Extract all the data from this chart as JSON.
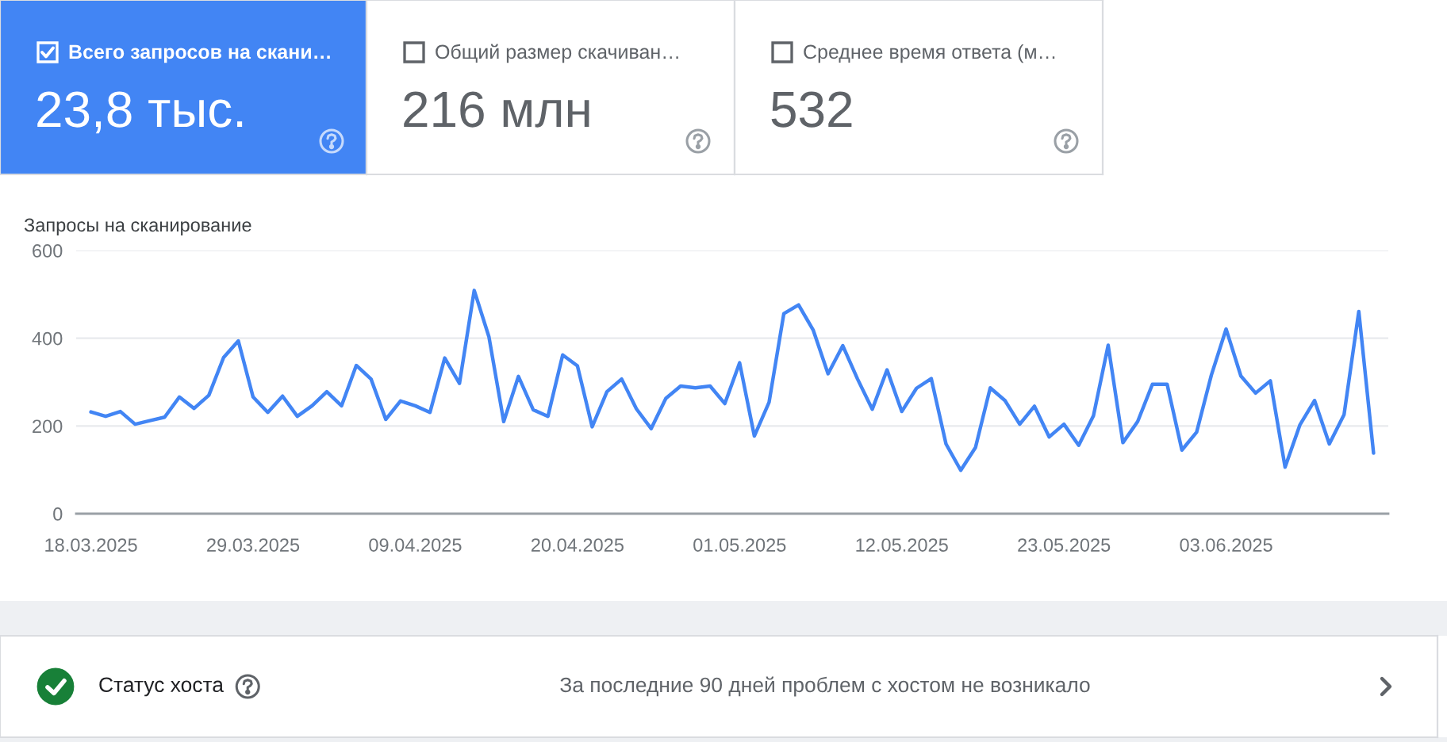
{
  "chart_data": [
    {
      "type": "other",
      "title": "Всего запросов на скани…",
      "annotations": [
        "23,8 тыс."
      ],
      "color": "#4285f4"
    },
    {
      "type": "other",
      "title": "Общий размер скачиван…",
      "annotations": [
        "216 млн"
      ],
      "color": "#ffffff"
    },
    {
      "type": "other",
      "title": "Среднее время ответа (м…",
      "annotations": [
        "532"
      ],
      "color": "#ffffff"
    },
    {
      "type": "line",
      "ylabel": "Запросы на сканирование",
      "color": "#4285f4",
      "x": [
        "2025-03-18",
        "2025-03-19",
        "2025-03-20",
        "2025-03-21",
        "2025-03-22",
        "2025-03-23",
        "2025-03-24",
        "2025-03-25",
        "2025-03-26",
        "2025-03-27",
        "2025-03-28",
        "2025-03-29",
        "2025-03-30",
        "2025-03-31",
        "2025-04-01",
        "2025-04-02",
        "2025-04-03",
        "2025-04-04",
        "2025-04-05",
        "2025-04-06",
        "2025-04-07",
        "2025-04-08",
        "2025-04-09",
        "2025-04-10",
        "2025-04-11",
        "2025-04-12",
        "2025-04-13",
        "2025-04-14",
        "2025-04-15",
        "2025-04-16",
        "2025-04-17",
        "2025-04-18",
        "2025-04-19",
        "2025-04-20",
        "2025-04-21",
        "2025-04-22",
        "2025-04-23",
        "2025-04-24",
        "2025-04-25",
        "2025-04-26",
        "2025-04-27",
        "2025-04-28",
        "2025-04-29",
        "2025-04-30",
        "2025-05-01",
        "2025-05-02",
        "2025-05-03",
        "2025-05-04",
        "2025-05-05",
        "2025-05-06",
        "2025-05-07",
        "2025-05-08",
        "2025-05-09",
        "2025-05-10",
        "2025-05-11",
        "2025-05-12",
        "2025-05-13",
        "2025-05-14",
        "2025-05-15",
        "2025-05-16",
        "2025-05-17",
        "2025-05-18",
        "2025-05-19",
        "2025-05-20",
        "2025-05-21",
        "2025-05-22",
        "2025-05-23",
        "2025-05-24",
        "2025-05-25",
        "2025-05-26",
        "2025-05-27",
        "2025-05-28",
        "2025-05-29",
        "2025-05-30",
        "2025-05-31",
        "2025-06-01",
        "2025-06-02",
        "2025-06-03",
        "2025-06-04",
        "2025-06-05",
        "2025-06-06",
        "2025-06-07",
        "2025-06-08",
        "2025-06-09",
        "2025-06-10",
        "2025-06-11",
        "2025-06-12",
        "2025-06-13"
      ],
      "values": [
        232,
        222,
        233,
        204,
        212,
        220,
        266,
        240,
        270,
        356,
        394,
        266,
        231,
        268,
        222,
        246,
        278,
        246,
        338,
        307,
        215,
        257,
        246,
        231,
        355,
        297,
        509,
        403,
        210,
        313,
        237,
        222,
        362,
        337,
        198,
        278,
        307,
        239,
        194,
        263,
        291,
        287,
        291,
        251,
        344,
        177,
        254,
        456,
        476,
        418,
        319,
        383,
        307,
        238,
        328,
        233,
        286,
        308,
        159,
        99,
        151,
        287,
        258,
        204,
        245,
        175,
        204,
        156,
        223,
        384,
        162,
        210,
        295,
        295,
        145,
        186,
        316,
        421,
        314,
        275,
        303,
        106,
        202,
        258,
        159,
        226,
        461,
        138
      ],
      "xlim": [
        "2025-03-17",
        "2025-06-14"
      ],
      "ylim": [
        0,
        600
      ],
      "yticks": [
        0,
        200,
        400,
        600
      ],
      "xticks": [
        {
          "value": "2025-03-18",
          "label": "18.03.2025"
        },
        {
          "value": "2025-03-29",
          "label": "29.03.2025"
        },
        {
          "value": "2025-04-09",
          "label": "09.04.2025"
        },
        {
          "value": "2025-04-20",
          "label": "20.04.2025"
        },
        {
          "value": "2025-05-01",
          "label": "01.05.2025"
        },
        {
          "value": "2025-05-12",
          "label": "12.05.2025"
        },
        {
          "value": "2025-05-23",
          "label": "23.05.2025"
        },
        {
          "value": "2025-06-03",
          "label": "03.06.2025"
        }
      ],
      "grid": "y"
    },
    {
      "type": "other",
      "title": "Статус хоста",
      "annotations": [
        "За последние 90 дней проблем с хостом не возникало"
      ],
      "color": "#188038"
    }
  ]
}
